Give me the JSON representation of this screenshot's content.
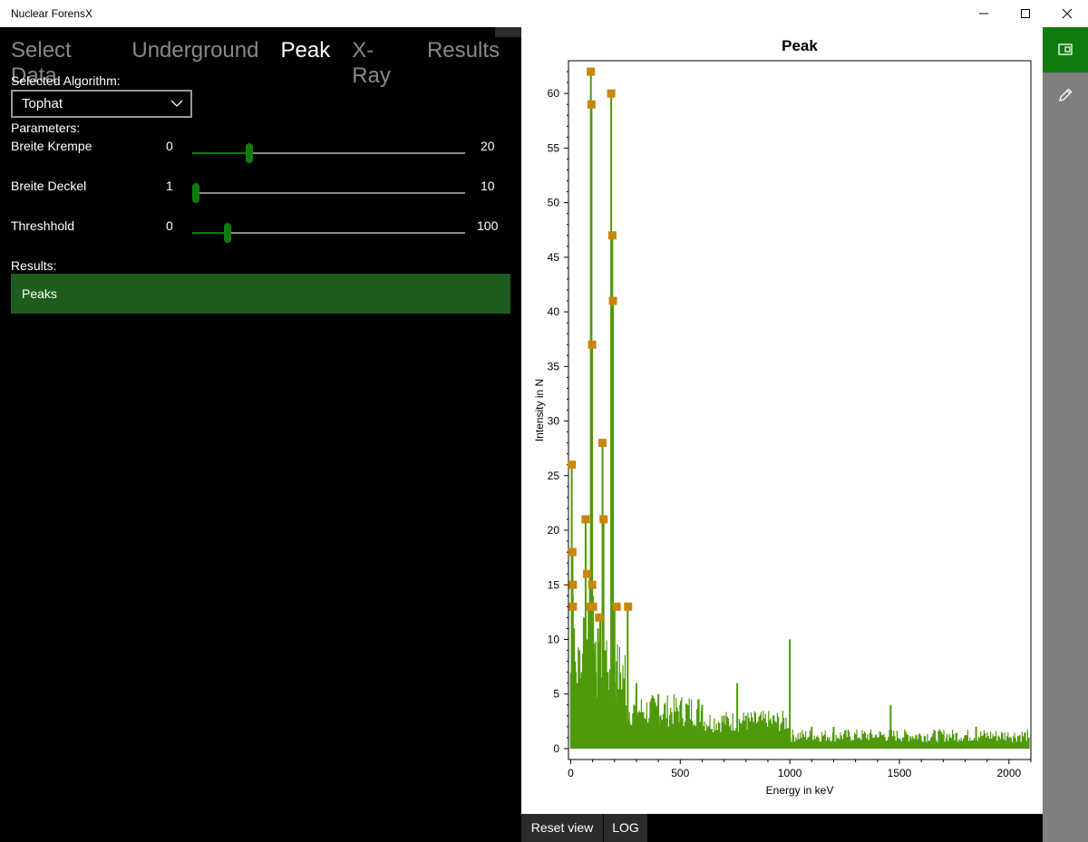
{
  "window": {
    "title": "Nuclear ForensX"
  },
  "tabs": [
    {
      "label": "Select Data",
      "active": false
    },
    {
      "label": "Underground",
      "active": false
    },
    {
      "label": "Peak",
      "active": true
    },
    {
      "label": "X-Ray",
      "active": false
    },
    {
      "label": "Results",
      "active": false
    }
  ],
  "algorithm": {
    "label": "Selected Algorithm:",
    "selected": "Tophat"
  },
  "parameters": {
    "label": "Parameters:",
    "items": [
      {
        "name": "Breite Krempe",
        "min": "0",
        "max": "20",
        "value": 4
      },
      {
        "name": "Breite Deckel",
        "min": "1",
        "max": "10",
        "value": 1
      },
      {
        "name": "Threshhold",
        "min": "0",
        "max": "100",
        "value": 12
      }
    ]
  },
  "results": {
    "label": "Results:",
    "button_label": "Peaks"
  },
  "bottom": {
    "reset_label": "Reset view",
    "log_label": "LOG"
  },
  "colors": {
    "accent": "#107c10",
    "series": "#4f9a0a",
    "marker": "#c8860a"
  },
  "chart_data": {
    "type": "line",
    "title": "Peak",
    "xlabel": "Energy in keV",
    "ylabel": "Intensity in N",
    "xlim": [
      -10,
      2100
    ],
    "ylim": [
      -1,
      63
    ],
    "xticks": [
      0,
      500,
      1000,
      1500,
      2000
    ],
    "yticks": [
      0,
      5,
      10,
      15,
      20,
      25,
      30,
      35,
      40,
      45,
      50,
      55,
      60
    ],
    "grid": false,
    "series": [
      {
        "line": [
          [
            5,
            26
          ],
          [
            8,
            18
          ],
          [
            10,
            14
          ],
          [
            15,
            11
          ],
          [
            20,
            8
          ],
          [
            30,
            6
          ],
          [
            40,
            9
          ],
          [
            50,
            7
          ],
          [
            60,
            12
          ],
          [
            68,
            21
          ],
          [
            75,
            10
          ],
          [
            82,
            13
          ],
          [
            88,
            16
          ],
          [
            92,
            62
          ],
          [
            95,
            59
          ],
          [
            98,
            37
          ],
          [
            102,
            14
          ],
          [
            108,
            9
          ],
          [
            115,
            7
          ],
          [
            125,
            11
          ],
          [
            135,
            12
          ],
          [
            145,
            28
          ],
          [
            150,
            21
          ],
          [
            158,
            9
          ],
          [
            170,
            7
          ],
          [
            185,
            60
          ],
          [
            190,
            47
          ],
          [
            193,
            41
          ],
          [
            200,
            13
          ],
          [
            210,
            8
          ],
          [
            225,
            7
          ],
          [
            240,
            6
          ],
          [
            260,
            13
          ],
          [
            300,
            6
          ],
          [
            400,
            5
          ],
          [
            500,
            4
          ],
          [
            600,
            4
          ],
          [
            700,
            3
          ],
          [
            760,
            6
          ],
          [
            800,
            3
          ],
          [
            900,
            2
          ],
          [
            1000,
            10
          ],
          [
            1100,
            2
          ],
          [
            1200,
            2
          ],
          [
            1300,
            1
          ],
          [
            1400,
            1
          ],
          [
            1460,
            4
          ],
          [
            1550,
            1
          ],
          [
            1700,
            1
          ],
          [
            1800,
            1
          ],
          [
            1850,
            2
          ],
          [
            2000,
            1
          ],
          [
            2090,
            1
          ]
        ]
      },
      {
        "peaks": [
          [
            5,
            26
          ],
          [
            8,
            18
          ],
          [
            10,
            15
          ],
          [
            10,
            13
          ],
          [
            68,
            21
          ],
          [
            75,
            16
          ],
          [
            90,
            13
          ],
          [
            92,
            62
          ],
          [
            95,
            59
          ],
          [
            98,
            37
          ],
          [
            98,
            15
          ],
          [
            102,
            13
          ],
          [
            130,
            12
          ],
          [
            145,
            28
          ],
          [
            150,
            21
          ],
          [
            185,
            60
          ],
          [
            190,
            47
          ],
          [
            193,
            41
          ],
          [
            210,
            13
          ],
          [
            262,
            13
          ]
        ]
      }
    ]
  }
}
